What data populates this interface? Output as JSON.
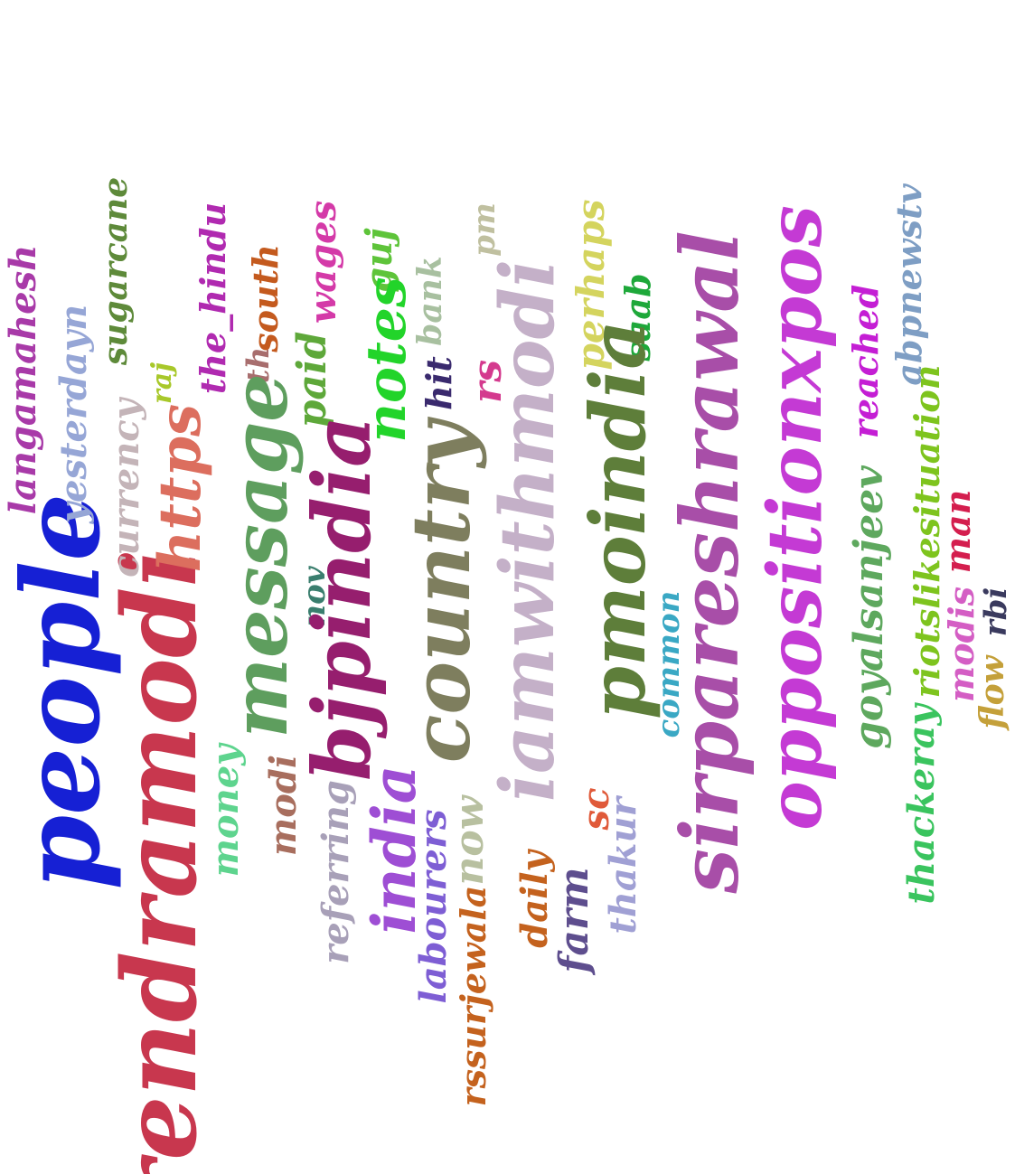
{
  "words": [
    {
      "text": "people",
      "color": "#1620d4"
    },
    {
      "text": "rendramodi",
      "color": "#c8374e"
    },
    {
      "text": "langamahesh",
      "color": "#a83aa8"
    },
    {
      "text": "yesterdayn",
      "color": "#96a6d6"
    },
    {
      "text": "sugarcane",
      "color": "#5e8a3a"
    },
    {
      "text": "currency",
      "color": "#c4b4b8"
    },
    {
      "text": "raj",
      "color": "#a8c82a"
    },
    {
      "text": "https",
      "color": "#dc6e5e"
    },
    {
      "text": "the_hindu",
      "color": "#b02ab0"
    },
    {
      "text": "money",
      "color": "#5ed48e"
    },
    {
      "text": "th",
      "color": "#a86e6e"
    },
    {
      "text": "south",
      "color": "#c45a1e"
    },
    {
      "text": "message",
      "color": "#5e9e5e"
    },
    {
      "text": "modi",
      "color": "#a86e5e"
    },
    {
      "text": "wages",
      "color": "#d43aa8"
    },
    {
      "text": "paid",
      "color": "#5ea83a"
    },
    {
      "text": "nov",
      "color": "#3a7e6e"
    },
    {
      "text": "bjpindia",
      "color": "#961e6e"
    },
    {
      "text": "referring",
      "color": "#a8a0b8"
    },
    {
      "text": "guj",
      "color": "#5ec43a"
    },
    {
      "text": "notes",
      "color": "#22d42a"
    },
    {
      "text": "india",
      "color": "#9e4ed4"
    },
    {
      "text": "bank",
      "color": "#a8c0a0"
    },
    {
      "text": "hit",
      "color": "#3a2a6e"
    },
    {
      "text": "country",
      "color": "#7e7e5e"
    },
    {
      "text": "labourers",
      "color": "#7e5ed4"
    },
    {
      "text": "now",
      "color": "#b8c0a0"
    },
    {
      "text": "rssurjewala",
      "color": "#c4621e"
    },
    {
      "text": "pm",
      "color": "#c0c0a0"
    },
    {
      "text": "rs",
      "color": "#d43a8e"
    },
    {
      "text": "iamwithmodi",
      "color": "#c4b0c8"
    },
    {
      "text": "daily",
      "color": "#c4621e"
    },
    {
      "text": "farm",
      "color": "#5e4e8e"
    },
    {
      "text": "perhaps",
      "color": "#d4d45e"
    },
    {
      "text": "sc",
      "color": "#e05a3a"
    },
    {
      "text": "saab",
      "color": "#1ea83a"
    },
    {
      "text": "pmoindia",
      "color": "#5e7e3a"
    },
    {
      "text": "thakur",
      "color": "#a0a0d4"
    },
    {
      "text": "common",
      "color": "#3aa8c4"
    },
    {
      "text": "sirpareshrawal",
      "color": "#a84ea8"
    },
    {
      "text": "oppositionxpos",
      "color": "#c43ad4"
    },
    {
      "text": "reached",
      "color": "#c41ed4"
    },
    {
      "text": "goyalsanjeev",
      "color": "#5ea85e"
    },
    {
      "text": "thackeray",
      "color": "#3ac45e"
    },
    {
      "text": "abpnewstv",
      "color": "#7e9ec4"
    },
    {
      "text": "riotslikesituation",
      "color": "#7ec41e"
    },
    {
      "text": "man",
      "color": "#d41e4e"
    },
    {
      "text": "modis",
      "color": "#d45ec4"
    },
    {
      "text": "flow",
      "color": "#c4a03a"
    },
    {
      "text": "rbi",
      "color": "#3a3a5e"
    }
  ]
}
